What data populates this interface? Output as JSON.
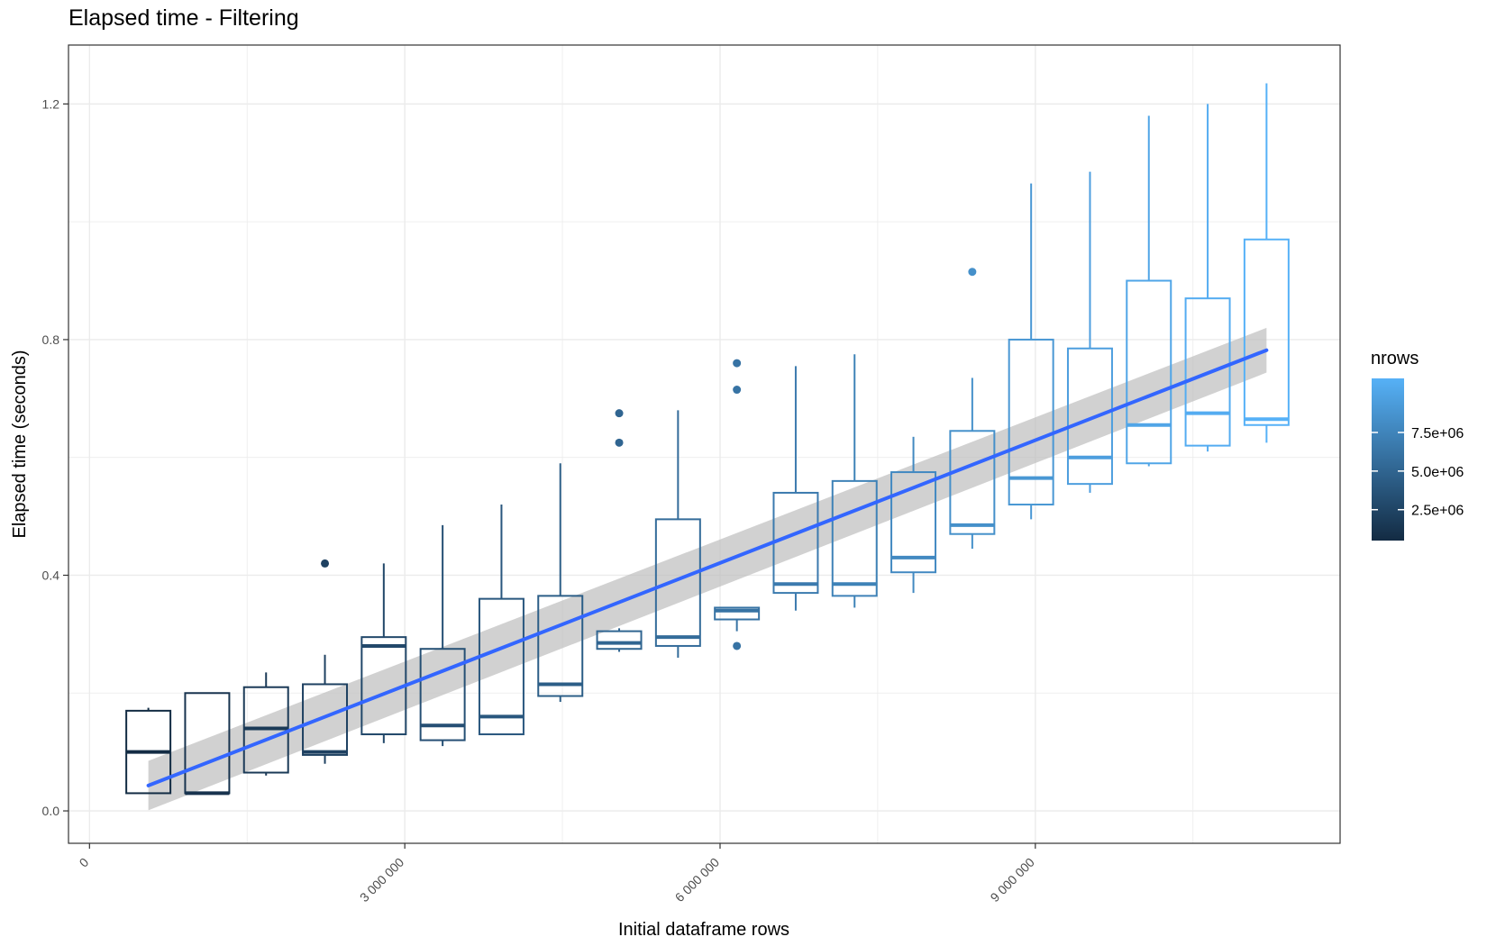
{
  "chart_data": {
    "type": "box",
    "title": "Elapsed time - Filtering",
    "xlabel": "Initial dataframe rows",
    "ylabel": "Elapsed time (seconds)",
    "xlim": [
      -200000,
      11900000
    ],
    "ylim": [
      -0.055,
      1.3
    ],
    "x_ticks": [
      {
        "value": 0,
        "label": "0"
      },
      {
        "value": 3000000,
        "label": "3 000 000"
      },
      {
        "value": 6000000,
        "label": "6 000 000"
      },
      {
        "value": 9000000,
        "label": "9 000 000"
      }
    ],
    "y_ticks": [
      {
        "value": 0.0,
        "label": "0.0"
      },
      {
        "value": 0.4,
        "label": "0.4"
      },
      {
        "value": 0.8,
        "label": "0.8"
      },
      {
        "value": 1.2,
        "label": "1.2"
      }
    ],
    "grid": true,
    "legend": {
      "title": "nrows",
      "position": "right",
      "low_color": "#132B43",
      "high_color": "#56B1F7",
      "range": [
        500000,
        11000000
      ],
      "breaks": [
        {
          "value": 2500000,
          "label": "2.5e+06"
        },
        {
          "value": 5000000,
          "label": "5.0e+06"
        },
        {
          "value": 7500000,
          "label": "7.5e+06"
        }
      ]
    },
    "boxes": [
      {
        "x": 560000,
        "low": 0.03,
        "q1": 0.03,
        "median": 0.1,
        "q3": 0.17,
        "high": 0.175,
        "outliers": []
      },
      {
        "x": 1120000,
        "low": 0.03,
        "q1": 0.03,
        "median": 0.03,
        "q3": 0.2,
        "high": 0.2,
        "outliers": []
      },
      {
        "x": 1680000,
        "low": 0.06,
        "q1": 0.065,
        "median": 0.14,
        "q3": 0.21,
        "high": 0.235,
        "outliers": []
      },
      {
        "x": 2240000,
        "low": 0.08,
        "q1": 0.095,
        "median": 0.1,
        "q3": 0.215,
        "high": 0.265,
        "outliers": [
          0.42
        ]
      },
      {
        "x": 2800000,
        "low": 0.115,
        "q1": 0.13,
        "median": 0.28,
        "q3": 0.295,
        "high": 0.42,
        "outliers": []
      },
      {
        "x": 3360000,
        "low": 0.11,
        "q1": 0.12,
        "median": 0.145,
        "q3": 0.275,
        "high": 0.485,
        "outliers": []
      },
      {
        "x": 3920000,
        "low": 0.13,
        "q1": 0.13,
        "median": 0.16,
        "q3": 0.36,
        "high": 0.52,
        "outliers": []
      },
      {
        "x": 4480000,
        "low": 0.185,
        "q1": 0.195,
        "median": 0.215,
        "q3": 0.365,
        "high": 0.59,
        "outliers": []
      },
      {
        "x": 5040000,
        "low": 0.27,
        "q1": 0.275,
        "median": 0.285,
        "q3": 0.305,
        "high": 0.31,
        "outliers": [
          0.625,
          0.675
        ]
      },
      {
        "x": 5600000,
        "low": 0.26,
        "q1": 0.28,
        "median": 0.295,
        "q3": 0.495,
        "high": 0.68,
        "outliers": []
      },
      {
        "x": 6160000,
        "low": 0.305,
        "q1": 0.325,
        "median": 0.34,
        "q3": 0.345,
        "high": 0.345,
        "outliers": [
          0.28,
          0.715,
          0.76
        ]
      },
      {
        "x": 6720000,
        "low": 0.34,
        "q1": 0.37,
        "median": 0.385,
        "q3": 0.54,
        "high": 0.755,
        "outliers": []
      },
      {
        "x": 7280000,
        "low": 0.345,
        "q1": 0.365,
        "median": 0.385,
        "q3": 0.56,
        "high": 0.775,
        "outliers": []
      },
      {
        "x": 7840000,
        "low": 0.37,
        "q1": 0.405,
        "median": 0.43,
        "q3": 0.575,
        "high": 0.635,
        "outliers": []
      },
      {
        "x": 8400000,
        "low": 0.445,
        "q1": 0.47,
        "median": 0.485,
        "q3": 0.645,
        "high": 0.735,
        "outliers": [
          0.915
        ]
      },
      {
        "x": 8960000,
        "low": 0.495,
        "q1": 0.52,
        "median": 0.565,
        "q3": 0.8,
        "high": 1.065,
        "outliers": []
      },
      {
        "x": 9520000,
        "low": 0.54,
        "q1": 0.555,
        "median": 0.6,
        "q3": 0.785,
        "high": 1.085,
        "outliers": []
      },
      {
        "x": 10080000,
        "low": 0.585,
        "q1": 0.59,
        "median": 0.655,
        "q3": 0.9,
        "high": 1.18,
        "outliers": []
      },
      {
        "x": 10640000,
        "low": 0.61,
        "q1": 0.62,
        "median": 0.675,
        "q3": 0.87,
        "high": 1.2,
        "outliers": []
      },
      {
        "x": 11200000,
        "low": 0.625,
        "q1": 0.655,
        "median": 0.665,
        "q3": 0.97,
        "high": 1.235,
        "outliers": []
      }
    ],
    "box_width": 420000,
    "trend_line": {
      "x": [
        560000,
        11200000
      ],
      "y": [
        0.043,
        0.782
      ],
      "ci_half_width": [
        0.042,
        0.038
      ],
      "color": "#3366FF",
      "ci_color": "#BDBDBD"
    }
  }
}
